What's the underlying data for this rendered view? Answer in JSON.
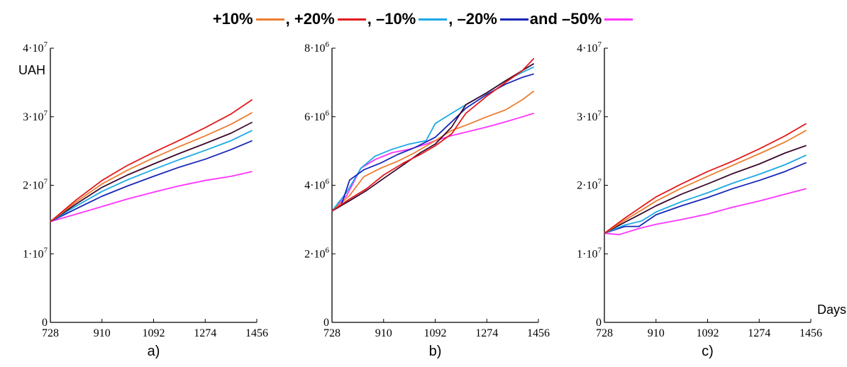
{
  "legend": {
    "items": [
      {
        "label": "+10%",
        "sep": "",
        "color": "#ed7d31"
      },
      {
        "label": "+20%",
        "sep": ", ",
        "color": "#e31a1c"
      },
      {
        "label": "–10%",
        "sep": ", ",
        "color": "#1ca9e6"
      },
      {
        "label": "–20%",
        "sep": ", ",
        "color": "#1626b8"
      },
      {
        "label": "–50%",
        "sep": " and ",
        "color": "#ff33ff"
      }
    ]
  },
  "colors": {
    "base": "#3d0a2e",
    "axis": "#000000"
  },
  "chart_data": [
    {
      "type": "line",
      "panel_label": "a)",
      "unit_label": "UAH",
      "x_axis_title": "",
      "xlim": [
        728,
        1456
      ],
      "ylim": [
        0,
        40000000
      ],
      "x_ticks": [
        728,
        910,
        1092,
        1274,
        1456
      ],
      "y_ticks": [
        {
          "value": 0,
          "mantissa": "0",
          "exp": ""
        },
        {
          "value": 10000000,
          "mantissa": "1·10",
          "exp": "7"
        },
        {
          "value": 20000000,
          "mantissa": "2·10",
          "exp": "7"
        },
        {
          "value": 30000000,
          "mantissa": "3·10",
          "exp": "7"
        },
        {
          "value": 40000000,
          "mantissa": "4·10",
          "exp": "7"
        }
      ],
      "grid": false,
      "series": [
        {
          "key": "m50",
          "color": "#ff33ff",
          "points": [
            [
              728,
              14700000
            ],
            [
              820,
              15800000
            ],
            [
              910,
              16900000
            ],
            [
              1000,
              18000000
            ],
            [
              1092,
              19000000
            ],
            [
              1180,
              19900000
            ],
            [
              1274,
              20700000
            ],
            [
              1365,
              21300000
            ],
            [
              1440,
              22000000
            ]
          ]
        },
        {
          "key": "m20",
          "color": "#1626b8",
          "points": [
            [
              728,
              14700000
            ],
            [
              820,
              16600000
            ],
            [
              910,
              18400000
            ],
            [
              1000,
              19900000
            ],
            [
              1092,
              21300000
            ],
            [
              1180,
              22600000
            ],
            [
              1274,
              23800000
            ],
            [
              1365,
              25200000
            ],
            [
              1440,
              26500000
            ]
          ]
        },
        {
          "key": "m10",
          "color": "#1ca9e6",
          "points": [
            [
              728,
              14700000
            ],
            [
              820,
              17000000
            ],
            [
              910,
              19100000
            ],
            [
              1000,
              20800000
            ],
            [
              1092,
              22300000
            ],
            [
              1180,
              23700000
            ],
            [
              1274,
              25100000
            ],
            [
              1365,
              26500000
            ],
            [
              1440,
              28000000
            ]
          ]
        },
        {
          "key": "base",
          "color": "#3d0a2e",
          "points": [
            [
              728,
              14700000
            ],
            [
              820,
              17300000
            ],
            [
              910,
              19700000
            ],
            [
              1000,
              21500000
            ],
            [
              1092,
              23100000
            ],
            [
              1180,
              24600000
            ],
            [
              1274,
              26100000
            ],
            [
              1365,
              27600000
            ],
            [
              1440,
              29200000
            ]
          ]
        },
        {
          "key": "p10",
          "color": "#ed7d31",
          "points": [
            [
              728,
              14700000
            ],
            [
              820,
              17600000
            ],
            [
              910,
              20200000
            ],
            [
              1000,
              22200000
            ],
            [
              1092,
              24000000
            ],
            [
              1180,
              25600000
            ],
            [
              1274,
              27200000
            ],
            [
              1365,
              28900000
            ],
            [
              1440,
              30600000
            ]
          ]
        },
        {
          "key": "p20",
          "color": "#e31a1c",
          "points": [
            [
              728,
              14700000
            ],
            [
              820,
              17900000
            ],
            [
              910,
              20700000
            ],
            [
              1000,
              22900000
            ],
            [
              1092,
              24800000
            ],
            [
              1180,
              26500000
            ],
            [
              1274,
              28400000
            ],
            [
              1365,
              30400000
            ],
            [
              1440,
              32500000
            ]
          ]
        }
      ]
    },
    {
      "type": "line",
      "panel_label": "b)",
      "unit_label": "",
      "x_axis_title": "",
      "xlim": [
        728,
        1456
      ],
      "ylim": [
        0,
        8000000
      ],
      "x_ticks": [
        728,
        910,
        1092,
        1274,
        1456
      ],
      "y_ticks": [
        {
          "value": 0,
          "mantissa": "0",
          "exp": ""
        },
        {
          "value": 2000000,
          "mantissa": "2·10",
          "exp": "6"
        },
        {
          "value": 4000000,
          "mantissa": "4·10",
          "exp": "6"
        },
        {
          "value": 6000000,
          "mantissa": "6·10",
          "exp": "6"
        },
        {
          "value": 8000000,
          "mantissa": "8·10",
          "exp": "6"
        }
      ],
      "grid": false,
      "series": [
        {
          "key": "m50",
          "color": "#ff33ff",
          "points": [
            [
              728,
              3250000
            ],
            [
              780,
              3700000
            ],
            [
              830,
              4500000
            ],
            [
              880,
              4750000
            ],
            [
              940,
              4950000
            ],
            [
              1000,
              5050000
            ],
            [
              1060,
              5200000
            ],
            [
              1092,
              5300000
            ],
            [
              1150,
              5450000
            ],
            [
              1200,
              5550000
            ],
            [
              1274,
              5700000
            ],
            [
              1340,
              5850000
            ],
            [
              1400,
              6000000
            ],
            [
              1440,
              6100000
            ]
          ]
        },
        {
          "key": "p10",
          "color": "#ed7d31",
          "points": [
            [
              728,
              3250000
            ],
            [
              790,
              3700000
            ],
            [
              840,
              4250000
            ],
            [
              900,
              4500000
            ],
            [
              960,
              4700000
            ],
            [
              1020,
              4950000
            ],
            [
              1092,
              5300000
            ],
            [
              1150,
              5600000
            ],
            [
              1200,
              5750000
            ],
            [
              1274,
              6000000
            ],
            [
              1340,
              6200000
            ],
            [
              1400,
              6500000
            ],
            [
              1440,
              6750000
            ]
          ]
        },
        {
          "key": "m10",
          "color": "#1ca9e6",
          "points": [
            [
              728,
              3250000
            ],
            [
              780,
              3800000
            ],
            [
              830,
              4500000
            ],
            [
              880,
              4850000
            ],
            [
              940,
              5050000
            ],
            [
              1000,
              5200000
            ],
            [
              1060,
              5300000
            ],
            [
              1092,
              5800000
            ],
            [
              1150,
              6100000
            ],
            [
              1200,
              6350000
            ],
            [
              1274,
              6700000
            ],
            [
              1340,
              7050000
            ],
            [
              1400,
              7300000
            ],
            [
              1440,
              7450000
            ]
          ]
        },
        {
          "key": "m20",
          "color": "#1626b8",
          "points": [
            [
              728,
              3250000
            ],
            [
              760,
              3400000
            ],
            [
              790,
              4150000
            ],
            [
              840,
              4450000
            ],
            [
              900,
              4650000
            ],
            [
              960,
              4900000
            ],
            [
              1020,
              5100000
            ],
            [
              1092,
              5400000
            ],
            [
              1150,
              5850000
            ],
            [
              1200,
              6250000
            ],
            [
              1274,
              6650000
            ],
            [
              1340,
              6950000
            ],
            [
              1400,
              7150000
            ],
            [
              1440,
              7250000
            ]
          ]
        },
        {
          "key": "base",
          "color": "#3d0a2e",
          "points": [
            [
              728,
              3250000
            ],
            [
              790,
              3550000
            ],
            [
              850,
              3850000
            ],
            [
              910,
              4200000
            ],
            [
              980,
              4600000
            ],
            [
              1040,
              4950000
            ],
            [
              1092,
              5200000
            ],
            [
              1150,
              5700000
            ],
            [
              1200,
              6350000
            ],
            [
              1274,
              6700000
            ],
            [
              1340,
              7050000
            ],
            [
              1400,
              7350000
            ],
            [
              1440,
              7550000
            ]
          ]
        },
        {
          "key": "p20",
          "color": "#e31a1c",
          "points": [
            [
              728,
              3250000
            ],
            [
              790,
              3600000
            ],
            [
              850,
              3900000
            ],
            [
              910,
              4300000
            ],
            [
              980,
              4650000
            ],
            [
              1040,
              4900000
            ],
            [
              1092,
              5150000
            ],
            [
              1150,
              5500000
            ],
            [
              1200,
              6100000
            ],
            [
              1274,
              6600000
            ],
            [
              1340,
              7000000
            ],
            [
              1400,
              7350000
            ],
            [
              1440,
              7700000
            ]
          ]
        }
      ]
    },
    {
      "type": "line",
      "panel_label": "c)",
      "unit_label": "",
      "x_axis_title": "Days",
      "xlim": [
        728,
        1456
      ],
      "ylim": [
        0,
        40000000
      ],
      "x_ticks": [
        728,
        910,
        1092,
        1274,
        1456
      ],
      "y_ticks": [
        {
          "value": 0,
          "mantissa": "0",
          "exp": ""
        },
        {
          "value": 10000000,
          "mantissa": "1·10",
          "exp": "7"
        },
        {
          "value": 20000000,
          "mantissa": "2·10",
          "exp": "7"
        },
        {
          "value": 30000000,
          "mantissa": "3·10",
          "exp": "7"
        },
        {
          "value": 40000000,
          "mantissa": "4·10",
          "exp": "7"
        }
      ],
      "grid": false,
      "series": [
        {
          "key": "m50",
          "color": "#ff33ff",
          "points": [
            [
              728,
              13000000
            ],
            [
              780,
              12800000
            ],
            [
              850,
              13700000
            ],
            [
              910,
              14300000
            ],
            [
              1000,
              15000000
            ],
            [
              1092,
              15800000
            ],
            [
              1180,
              16800000
            ],
            [
              1274,
              17700000
            ],
            [
              1365,
              18700000
            ],
            [
              1440,
              19500000
            ]
          ]
        },
        {
          "key": "m20",
          "color": "#1626b8",
          "points": [
            [
              728,
              13000000
            ],
            [
              800,
              14000000
            ],
            [
              850,
              14000000
            ],
            [
              910,
              15700000
            ],
            [
              1000,
              17000000
            ],
            [
              1092,
              18200000
            ],
            [
              1180,
              19500000
            ],
            [
              1274,
              20700000
            ],
            [
              1365,
              22000000
            ],
            [
              1440,
              23300000
            ]
          ]
        },
        {
          "key": "m10",
          "color": "#1ca9e6",
          "points": [
            [
              728,
              13000000
            ],
            [
              800,
              14200000
            ],
            [
              860,
              14800000
            ],
            [
              910,
              16100000
            ],
            [
              1000,
              17600000
            ],
            [
              1092,
              18900000
            ],
            [
              1180,
              20300000
            ],
            [
              1274,
              21600000
            ],
            [
              1365,
              23000000
            ],
            [
              1440,
              24400000
            ]
          ]
        },
        {
          "key": "base",
          "color": "#3d0a2e",
          "points": [
            [
              728,
              13000000
            ],
            [
              800,
              14600000
            ],
            [
              860,
              15900000
            ],
            [
              910,
              17000000
            ],
            [
              1000,
              18700000
            ],
            [
              1092,
              20200000
            ],
            [
              1180,
              21700000
            ],
            [
              1274,
              23100000
            ],
            [
              1365,
              24700000
            ],
            [
              1440,
              25800000
            ]
          ]
        },
        {
          "key": "p10",
          "color": "#ed7d31",
          "points": [
            [
              728,
              13000000
            ],
            [
              800,
              14900000
            ],
            [
              860,
              16400000
            ],
            [
              910,
              17700000
            ],
            [
              1000,
              19600000
            ],
            [
              1092,
              21300000
            ],
            [
              1180,
              22900000
            ],
            [
              1274,
              24600000
            ],
            [
              1365,
              26300000
            ],
            [
              1440,
              28000000
            ]
          ]
        },
        {
          "key": "p20",
          "color": "#e31a1c",
          "points": [
            [
              728,
              13000000
            ],
            [
              800,
              15200000
            ],
            [
              860,
              16900000
            ],
            [
              910,
              18300000
            ],
            [
              1000,
              20200000
            ],
            [
              1092,
              22000000
            ],
            [
              1180,
              23500000
            ],
            [
              1274,
              25300000
            ],
            [
              1365,
              27200000
            ],
            [
              1440,
              29000000
            ]
          ]
        }
      ]
    }
  ]
}
